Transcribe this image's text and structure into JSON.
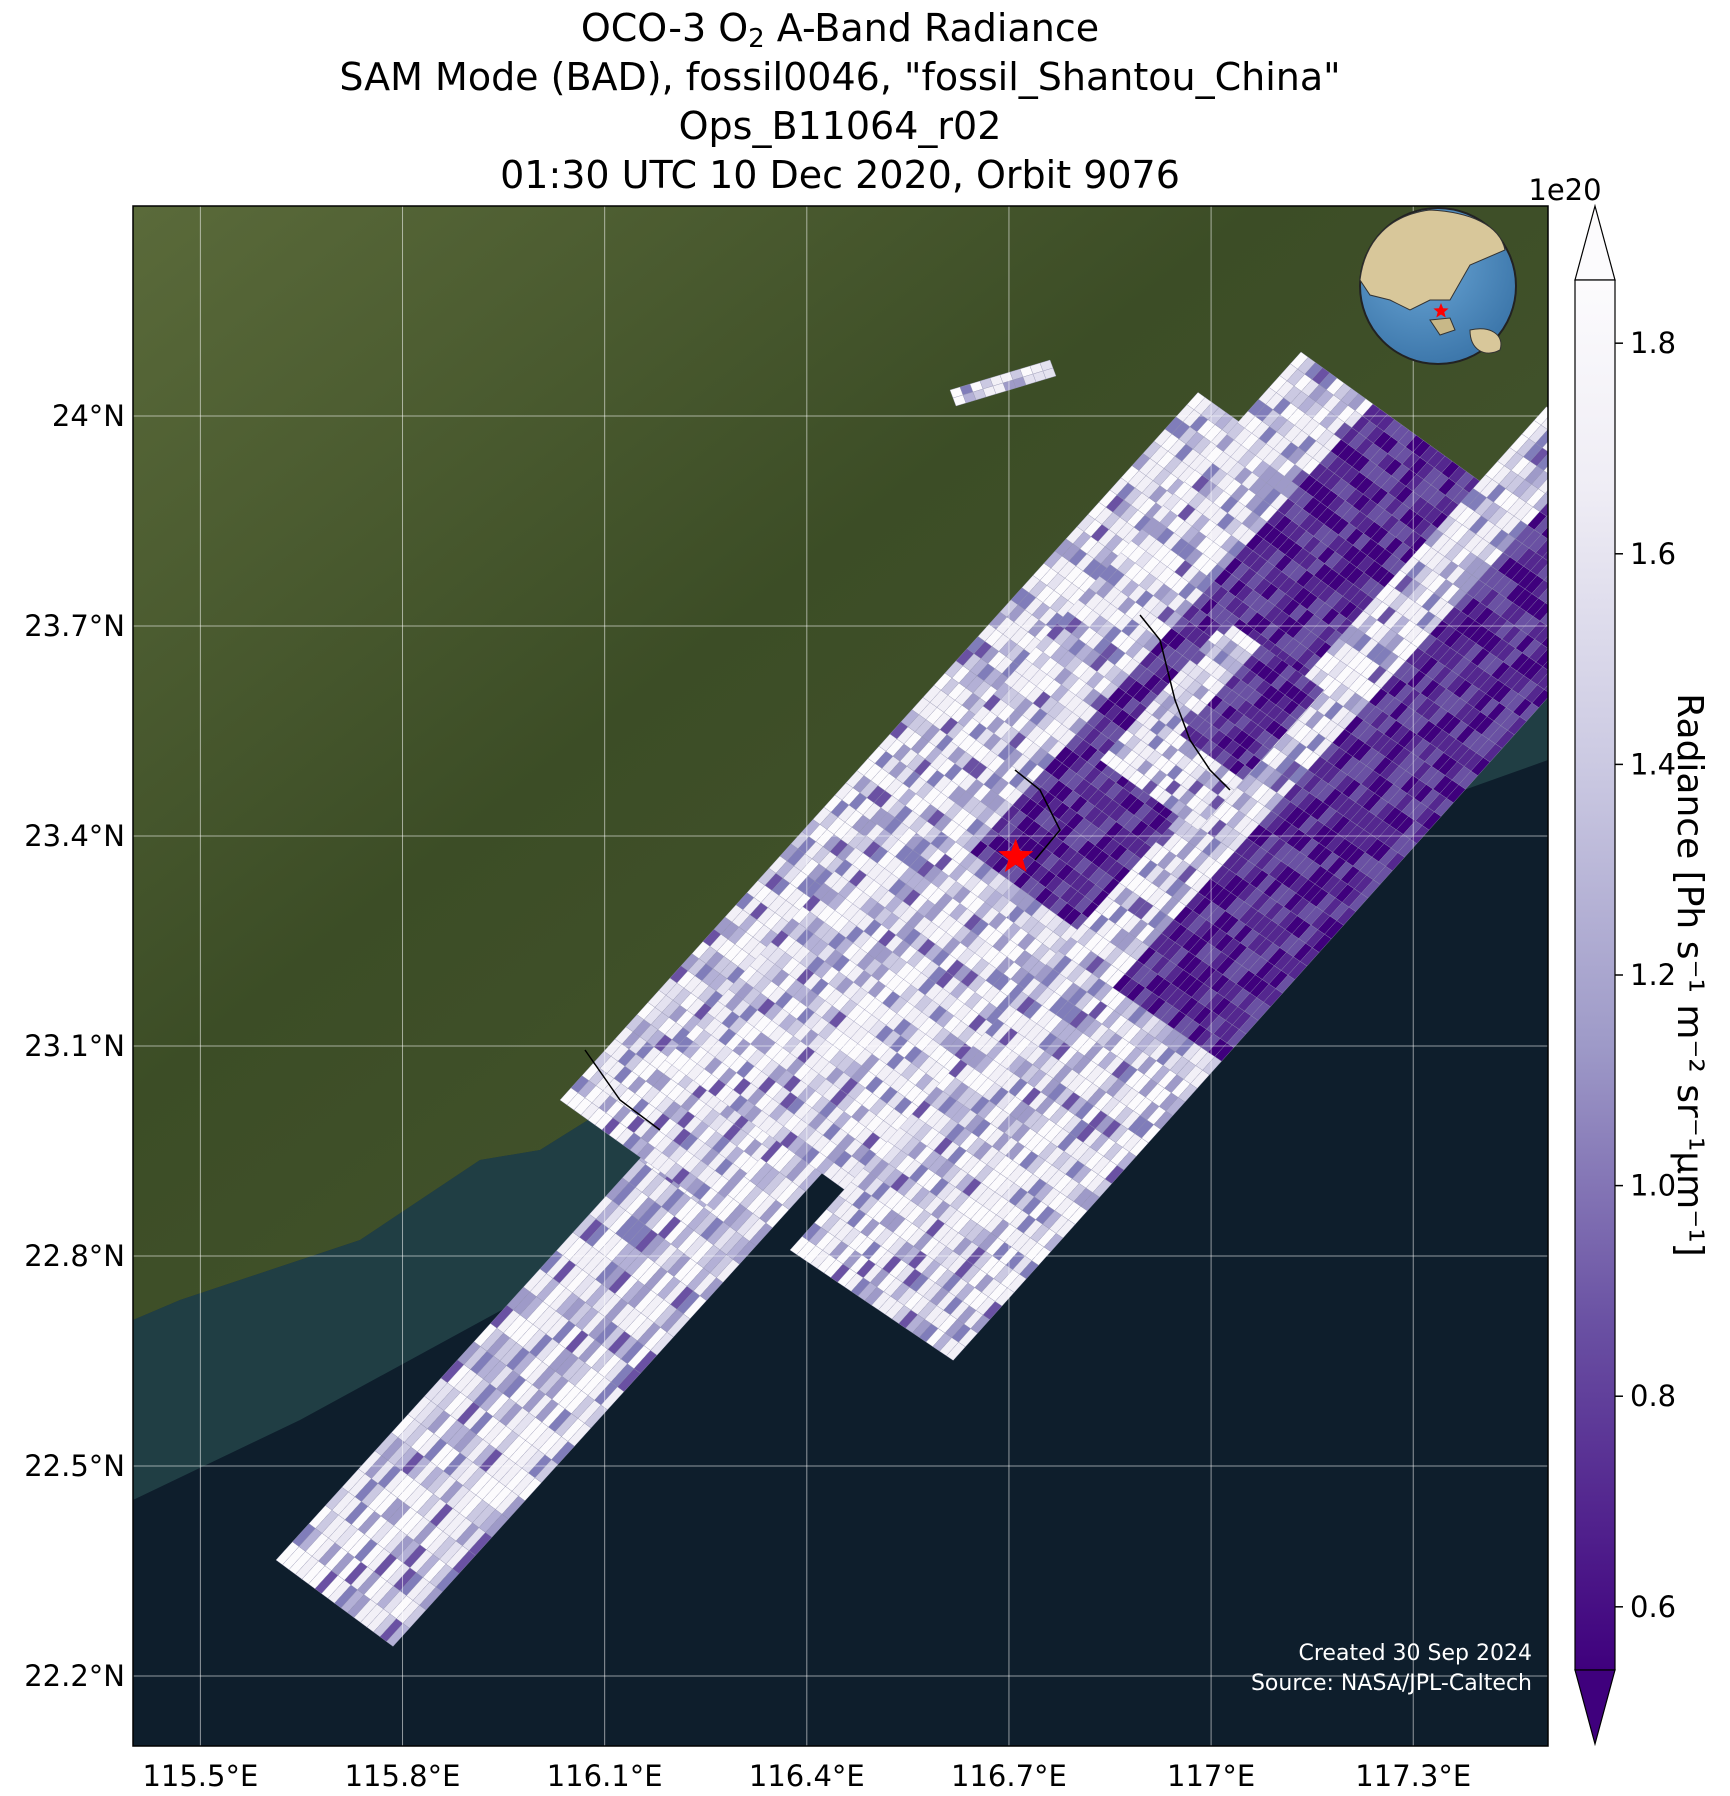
{
  "title": {
    "line1_prefix": "OCO-3 O",
    "line1_sub": "2",
    "line1_suffix": " A-Band Radiance",
    "line2": "SAM Mode (BAD), fossil0046, \"fossil_Shantou_China\"",
    "line3": "Ops_B11064_r02",
    "line4": "01:30 UTC 10 Dec 2020, Orbit 9076"
  },
  "map": {
    "lon_range": [
      115.4,
      117.5
    ],
    "lat_range": [
      22.1,
      24.3
    ],
    "lon_ticks": [
      {
        "value": 115.5,
        "label": "115.5°E"
      },
      {
        "value": 115.8,
        "label": "115.8°E"
      },
      {
        "value": 116.1,
        "label": "116.1°E"
      },
      {
        "value": 116.4,
        "label": "116.4°E"
      },
      {
        "value": 116.7,
        "label": "116.7°E"
      },
      {
        "value": 117.0,
        "label": "117°E"
      },
      {
        "value": 117.3,
        "label": "117.3°E"
      }
    ],
    "lat_ticks": [
      {
        "value": 24.0,
        "label": "24°N"
      },
      {
        "value": 23.7,
        "label": "23.7°N"
      },
      {
        "value": 23.4,
        "label": "23.4°N"
      },
      {
        "value": 23.1,
        "label": "23.1°N"
      },
      {
        "value": 22.8,
        "label": "22.8°N"
      },
      {
        "value": 22.5,
        "label": "22.5°N"
      },
      {
        "value": 22.2,
        "label": "22.2°N"
      }
    ],
    "gridlines": true,
    "target": {
      "name": "fossil_Shantou_China",
      "lon": 116.71,
      "lat": 23.37,
      "marker": "red-star"
    },
    "inset_globe": {
      "placement": "top-right",
      "marker": "red-star"
    },
    "colors": {
      "ocean": "#0e1e2c",
      "land": "#3b4a28",
      "target": "#ff0000"
    }
  },
  "colorbar": {
    "label": "Radiance [Ph s⁻¹ m⁻² sr⁻¹μm⁻¹]",
    "offset_label": "1e20",
    "colormap": "Purples_r",
    "vmin": 0.6,
    "vmax": 1.8,
    "extend": "both",
    "ticks": [
      {
        "value": 1.8,
        "label": "1.8"
      },
      {
        "value": 1.6,
        "label": "1.6"
      },
      {
        "value": 1.4,
        "label": "1.4"
      },
      {
        "value": 1.2,
        "label": "1.2"
      },
      {
        "value": 1.0,
        "label": "1.0"
      },
      {
        "value": 0.8,
        "label": "0.8"
      },
      {
        "value": 0.6,
        "label": "0.6"
      }
    ]
  },
  "credits": {
    "created": "Created 30 Sep 2024",
    "source": "Source: NASA/JPL-Caltech"
  }
}
